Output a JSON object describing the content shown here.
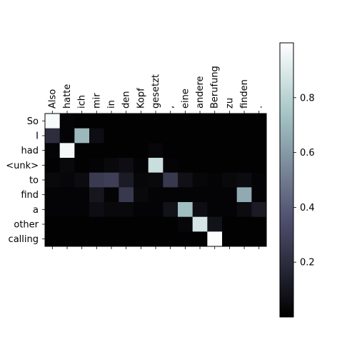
{
  "chart_data": {
    "type": "heatmap",
    "title": "",
    "xlabel": "",
    "ylabel": "",
    "x_labels": [
      "Also",
      "hatte",
      "ich",
      "mir",
      "in",
      "den",
      "Kopf",
      "gesetzt",
      ",",
      "eine",
      "andere",
      "Berufung",
      "zu",
      "finden",
      "."
    ],
    "y_labels": [
      "So",
      "I",
      "had",
      "<unk>",
      "to",
      "find",
      "a",
      "other",
      "calling"
    ],
    "colormap": "bone",
    "vmin": 0.0,
    "vmax": 1.0,
    "values": [
      [
        0.98,
        0.02,
        0.01,
        0.01,
        0.01,
        0.01,
        0.01,
        0.01,
        0.01,
        0.01,
        0.01,
        0.01,
        0.01,
        0.01,
        0.01
      ],
      [
        0.2,
        0.02,
        0.7,
        0.06,
        0.01,
        0.01,
        0.01,
        0.01,
        0.01,
        0.01,
        0.01,
        0.01,
        0.01,
        0.01,
        0.01
      ],
      [
        0.02,
        0.97,
        0.01,
        0.01,
        0.01,
        0.01,
        0.01,
        0.03,
        0.01,
        0.01,
        0.01,
        0.01,
        0.01,
        0.01,
        0.01
      ],
      [
        0.01,
        0.04,
        0.01,
        0.02,
        0.04,
        0.06,
        0.02,
        0.85,
        0.02,
        0.01,
        0.01,
        0.01,
        0.01,
        0.01,
        0.01
      ],
      [
        0.04,
        0.03,
        0.05,
        0.26,
        0.28,
        0.12,
        0.03,
        0.04,
        0.25,
        0.07,
        0.03,
        0.02,
        0.04,
        0.05,
        0.02
      ],
      [
        0.02,
        0.02,
        0.02,
        0.1,
        0.02,
        0.25,
        0.04,
        0.02,
        0.02,
        0.02,
        0.02,
        0.02,
        0.02,
        0.65,
        0.02
      ],
      [
        0.02,
        0.02,
        0.02,
        0.06,
        0.04,
        0.04,
        0.02,
        0.02,
        0.08,
        0.72,
        0.06,
        0.02,
        0.02,
        0.05,
        0.12
      ],
      [
        0.01,
        0.01,
        0.01,
        0.01,
        0.01,
        0.01,
        0.01,
        0.01,
        0.01,
        0.03,
        0.88,
        0.08,
        0.01,
        0.01,
        0.01
      ],
      [
        0.01,
        0.01,
        0.01,
        0.01,
        0.01,
        0.01,
        0.01,
        0.01,
        0.01,
        0.01,
        0.01,
        0.99,
        0.01,
        0.01,
        0.01
      ]
    ],
    "colorbar": {
      "ticks": [
        0.2,
        0.4,
        0.6,
        0.8
      ],
      "tick_labels": [
        "0.2",
        "0.4",
        "0.6",
        "0.8"
      ]
    }
  }
}
